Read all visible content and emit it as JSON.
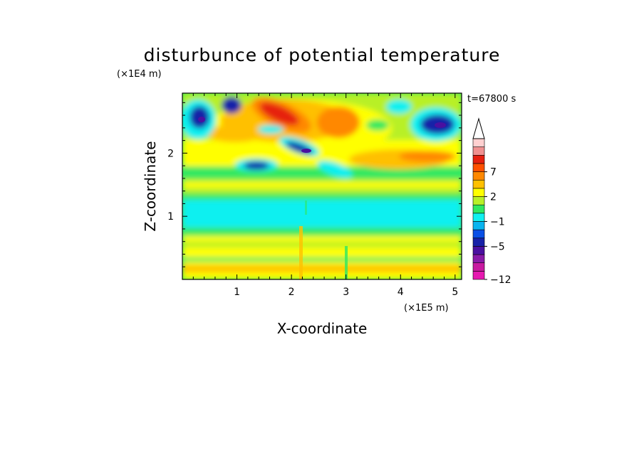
{
  "chart_data": {
    "type": "heatmap",
    "title": "disturbunce of potential temperature",
    "xlabel": "X-coordinate",
    "ylabel": "Z-coordinate",
    "x_unit": "(×1E5 m)",
    "y_unit": "(×1E4 m)",
    "time_label": "t=67800 s",
    "xlim": [
      0,
      5.12
    ],
    "ylim": [
      0,
      2.95
    ],
    "x_ticks": [
      "1",
      "2",
      "3",
      "4",
      "5"
    ],
    "y_ticks": [
      "1",
      "2"
    ],
    "colorbar": {
      "levels": [
        -12,
        -11,
        -9,
        -7,
        -5,
        -4,
        -3,
        -1,
        0,
        1,
        2,
        3,
        5,
        7,
        8,
        9,
        12
      ],
      "labels": [
        "-12",
        "-5",
        "-1",
        "2",
        "7"
      ],
      "colors": [
        "#e619b0",
        "#c81aa0",
        "#8a1aa8",
        "#4a10a0",
        "#1822a8",
        "#0a50e6",
        "#08b4f0",
        "#10f0f0",
        "#30e860",
        "#b8f028",
        "#ffff00",
        "#ffc000",
        "#ff8800",
        "#ff5000",
        "#e62010",
        "#f09090",
        "#ffd0d0"
      ],
      "extend": "max"
    }
  }
}
